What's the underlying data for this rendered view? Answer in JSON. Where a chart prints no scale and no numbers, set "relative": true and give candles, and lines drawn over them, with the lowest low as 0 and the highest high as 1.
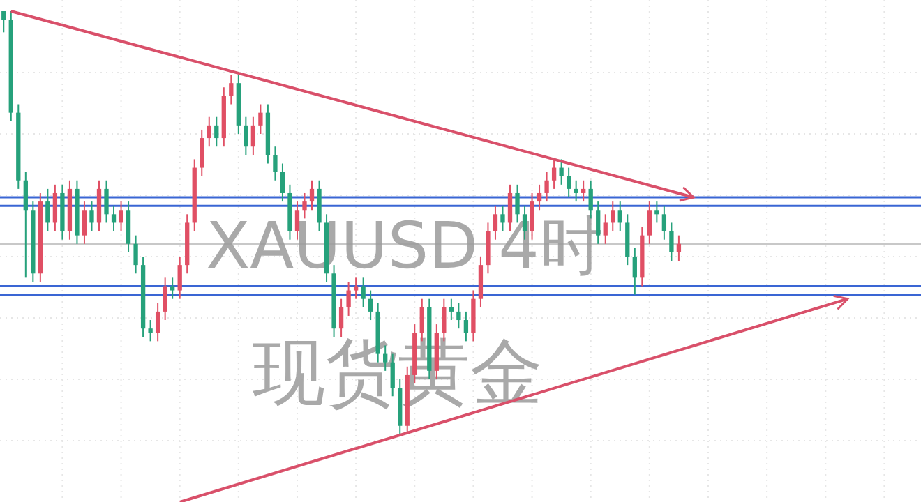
{
  "chart_data": {
    "type": "candlestick",
    "relative": true,
    "grid": true,
    "annotations": [
      "XAUUSD 4时",
      "现货黄金"
    ],
    "categories": [
      null,
      null,
      null,
      null,
      null,
      null,
      null,
      null,
      null,
      null,
      null,
      null,
      null,
      null,
      null,
      null,
      null,
      null,
      null,
      null,
      null,
      null,
      null,
      null,
      null,
      null,
      null,
      null,
      null,
      null,
      null,
      null,
      null,
      null,
      null,
      null,
      null,
      null,
      null,
      null,
      null,
      null,
      null,
      null,
      null,
      null,
      null,
      null,
      null,
      null,
      null,
      null,
      null,
      null,
      null,
      null,
      null,
      null,
      null,
      null,
      null,
      null,
      null,
      null,
      null,
      null,
      null,
      null,
      null,
      null,
      null,
      null,
      null,
      null,
      null,
      null,
      null,
      null,
      null,
      null,
      null,
      null,
      null,
      null,
      null,
      null,
      null,
      null,
      null,
      null,
      null,
      null,
      null,
      null,
      null,
      null,
      null,
      null,
      null,
      null,
      null,
      null,
      null,
      null,
      null,
      null,
      null,
      null,
      null,
      null,
      null,
      null,
      null,
      null,
      null,
      null
    ],
    "ohlc": [
      [
        1.0,
        1.0,
        0.95,
        0.98
      ],
      [
        0.98,
        1.0,
        0.74,
        0.76
      ],
      [
        0.76,
        0.78,
        0.58,
        0.6
      ],
      [
        0.6,
        0.62,
        0.37,
        0.53
      ],
      [
        0.53,
        0.55,
        0.36,
        0.38
      ],
      [
        0.38,
        0.57,
        0.36,
        0.55
      ],
      [
        0.55,
        0.58,
        0.48,
        0.5
      ],
      [
        0.5,
        0.59,
        0.48,
        0.57
      ],
      [
        0.57,
        0.59,
        0.46,
        0.48
      ],
      [
        0.48,
        0.6,
        0.46,
        0.58
      ],
      [
        0.58,
        0.6,
        0.45,
        0.47
      ],
      [
        0.47,
        0.55,
        0.45,
        0.53
      ],
      [
        0.53,
        0.55,
        0.48,
        0.5
      ],
      [
        0.5,
        0.6,
        0.48,
        0.58
      ],
      [
        0.58,
        0.6,
        0.5,
        0.52
      ],
      [
        0.52,
        0.54,
        0.48,
        0.5
      ],
      [
        0.5,
        0.55,
        0.48,
        0.53
      ],
      [
        0.53,
        0.55,
        0.43,
        0.45
      ],
      [
        0.45,
        0.47,
        0.38,
        0.4
      ],
      [
        0.4,
        0.42,
        0.23,
        0.25
      ],
      [
        0.25,
        0.27,
        0.22,
        0.24
      ],
      [
        0.24,
        0.31,
        0.22,
        0.29
      ],
      [
        0.29,
        0.37,
        0.27,
        0.35
      ],
      [
        0.35,
        0.37,
        0.32,
        0.34
      ],
      [
        0.34,
        0.42,
        0.32,
        0.4
      ],
      [
        0.4,
        0.52,
        0.38,
        0.5
      ],
      [
        0.5,
        0.65,
        0.48,
        0.63
      ],
      [
        0.63,
        0.72,
        0.61,
        0.7
      ],
      [
        0.7,
        0.75,
        0.68,
        0.73
      ],
      [
        0.73,
        0.75,
        0.68,
        0.7
      ],
      [
        0.7,
        0.82,
        0.68,
        0.8
      ],
      [
        0.8,
        0.85,
        0.78,
        0.83
      ],
      [
        0.83,
        0.85,
        0.71,
        0.73
      ],
      [
        0.73,
        0.75,
        0.66,
        0.68
      ],
      [
        0.68,
        0.75,
        0.66,
        0.73
      ],
      [
        0.73,
        0.78,
        0.71,
        0.76
      ],
      [
        0.76,
        0.78,
        0.64,
        0.66
      ],
      [
        0.66,
        0.68,
        0.6,
        0.62
      ],
      [
        0.62,
        0.64,
        0.55,
        0.57
      ],
      [
        0.57,
        0.59,
        0.46,
        0.48
      ],
      [
        0.48,
        0.55,
        0.46,
        0.53
      ],
      [
        0.53,
        0.57,
        0.51,
        0.55
      ],
      [
        0.55,
        0.6,
        0.53,
        0.58
      ],
      [
        0.58,
        0.6,
        0.48,
        0.5
      ],
      [
        0.5,
        0.52,
        0.36,
        0.38
      ],
      [
        0.38,
        0.4,
        0.23,
        0.25
      ],
      [
        0.25,
        0.32,
        0.23,
        0.3
      ],
      [
        0.3,
        0.36,
        0.28,
        0.34
      ],
      [
        0.34,
        0.37,
        0.32,
        0.35
      ],
      [
        0.35,
        0.37,
        0.3,
        0.32
      ],
      [
        0.32,
        0.34,
        0.27,
        0.29
      ],
      [
        0.29,
        0.31,
        0.17,
        0.19
      ],
      [
        0.19,
        0.21,
        0.15,
        0.17
      ],
      [
        0.17,
        0.19,
        0.09,
        0.11
      ],
      [
        0.11,
        0.13,
        0.0,
        0.02
      ],
      [
        0.02,
        0.16,
        0.0,
        0.14
      ],
      [
        0.14,
        0.26,
        0.12,
        0.24
      ],
      [
        0.24,
        0.32,
        0.22,
        0.3
      ],
      [
        0.3,
        0.32,
        0.13,
        0.15
      ],
      [
        0.15,
        0.26,
        0.13,
        0.24
      ],
      [
        0.24,
        0.32,
        0.22,
        0.3
      ],
      [
        0.3,
        0.32,
        0.27,
        0.29
      ],
      [
        0.29,
        0.31,
        0.25,
        0.27
      ],
      [
        0.27,
        0.29,
        0.22,
        0.24
      ],
      [
        0.24,
        0.34,
        0.22,
        0.32
      ],
      [
        0.32,
        0.42,
        0.3,
        0.4
      ],
      [
        0.4,
        0.5,
        0.38,
        0.48
      ],
      [
        0.48,
        0.54,
        0.46,
        0.52
      ],
      [
        0.52,
        0.54,
        0.48,
        0.5
      ],
      [
        0.5,
        0.59,
        0.48,
        0.57
      ],
      [
        0.57,
        0.59,
        0.5,
        0.52
      ],
      [
        0.52,
        0.54,
        0.46,
        0.48
      ],
      [
        0.48,
        0.57,
        0.46,
        0.55
      ],
      [
        0.55,
        0.59,
        0.53,
        0.57
      ],
      [
        0.57,
        0.62,
        0.55,
        0.6
      ],
      [
        0.6,
        0.65,
        0.58,
        0.63
      ],
      [
        0.63,
        0.65,
        0.59,
        0.61
      ],
      [
        0.61,
        0.63,
        0.56,
        0.58
      ],
      [
        0.58,
        0.6,
        0.55,
        0.57
      ],
      [
        0.57,
        0.6,
        0.55,
        0.58
      ],
      [
        0.58,
        0.6,
        0.51,
        0.53
      ],
      [
        0.53,
        0.55,
        0.45,
        0.47
      ],
      [
        0.47,
        0.52,
        0.45,
        0.5
      ],
      [
        0.5,
        0.55,
        0.48,
        0.53
      ],
      [
        0.53,
        0.55,
        0.48,
        0.5
      ],
      [
        0.5,
        0.52,
        0.4,
        0.42
      ],
      [
        0.42,
        0.44,
        0.33,
        0.37
      ],
      [
        0.37,
        0.49,
        0.35,
        0.47
      ],
      [
        0.47,
        0.55,
        0.45,
        0.53
      ],
      [
        0.53,
        0.55,
        0.5,
        0.52
      ],
      [
        0.52,
        0.54,
        0.46,
        0.48
      ],
      [
        0.48,
        0.5,
        0.41,
        0.43
      ],
      [
        0.43,
        0.47,
        0.41,
        0.45
      ],
      null,
      null,
      null,
      null,
      null,
      null,
      null,
      null,
      null,
      null,
      null,
      null,
      null,
      null,
      null,
      null,
      null,
      null,
      null,
      null,
      null,
      null,
      null
    ],
    "colors": [
      "#26a17b",
      "#26a17b",
      "#26a17b",
      "#26a17b",
      "#26a17b",
      "#e04f64",
      "#26a17b",
      "#e04f64",
      "#26a17b",
      "#e04f64",
      "#26a17b",
      "#e04f64",
      "#26a17b",
      "#e04f64",
      "#26a17b",
      "#26a17b",
      "#e04f64",
      "#26a17b",
      "#26a17b",
      "#26a17b",
      "#26a17b",
      "#e04f64",
      "#e04f64",
      "#26a17b",
      "#e04f64",
      "#e04f64",
      "#e04f64",
      "#e04f64",
      "#e04f64",
      "#26a17b",
      "#e04f64",
      "#e04f64",
      "#26a17b",
      "#26a17b",
      "#e04f64",
      "#e04f64",
      "#26a17b",
      "#26a17b",
      "#26a17b",
      "#26a17b",
      "#e04f64",
      "#e04f64",
      "#e04f64",
      "#26a17b",
      "#26a17b",
      "#26a17b",
      "#e04f64",
      "#e04f64",
      "#e04f64",
      "#26a17b",
      "#26a17b",
      "#26a17b",
      "#26a17b",
      "#26a17b",
      "#26a17b",
      "#e04f64",
      "#e04f64",
      "#e04f64",
      "#26a17b",
      "#e04f64",
      "#e04f64",
      "#26a17b",
      "#26a17b",
      "#26a17b",
      "#e04f64",
      "#e04f64",
      "#e04f64",
      "#e04f64",
      "#26a17b",
      "#e04f64",
      "#26a17b",
      "#26a17b",
      "#e04f64",
      "#e04f64",
      "#e04f64",
      "#e04f64",
      "#26a17b",
      "#26a17b",
      "#26a17b",
      "#e04f64",
      "#26a17b",
      "#26a17b",
      "#e04f64",
      "#e04f64",
      "#26a17b",
      "#26a17b",
      "#26a17b",
      "#e04f64",
      "#e04f64",
      "#26a17b",
      "#26a17b",
      "#26a17b",
      "#e04f64",
      null,
      null,
      null,
      null,
      null,
      null,
      null,
      null,
      null,
      null,
      null,
      null,
      null,
      null,
      null,
      null,
      null,
      null,
      null,
      null,
      null,
      null,
      null
    ],
    "series": [
      {
        "type": "line",
        "color": "#d9506a",
        "values": [
          null,
          1.0,
          null,
          null,
          null,
          null,
          null,
          null,
          null,
          null,
          null,
          null,
          null,
          null,
          null,
          null,
          null,
          null,
          null,
          null,
          null,
          null,
          null,
          null,
          null,
          null,
          null,
          null,
          null,
          null,
          null,
          null,
          null,
          null,
          null,
          null,
          null,
          null,
          null,
          null,
          null,
          null,
          null,
          null,
          null,
          null,
          null,
          null,
          null,
          null,
          null,
          null,
          null,
          null,
          null,
          null,
          null,
          null,
          null,
          null,
          null,
          null,
          null,
          null,
          null,
          null,
          null,
          null,
          null,
          null,
          null,
          null,
          null,
          null,
          null,
          null,
          null,
          null,
          null,
          null,
          null,
          null,
          null,
          null,
          null,
          null,
          null,
          null,
          null,
          null,
          null,
          null,
          null,
          null,
          0.56,
          null,
          null,
          null,
          null,
          null,
          null,
          null,
          null,
          null,
          null,
          null,
          null,
          null,
          null,
          null,
          null,
          null,
          null,
          null,
          null,
          null
        ]
      },
      {
        "type": "line",
        "color": "#d9506a",
        "values": [
          null,
          null,
          null,
          null,
          null,
          null,
          null,
          null,
          null,
          null,
          null,
          null,
          null,
          null,
          null,
          null,
          null,
          null,
          null,
          null,
          null,
          null,
          null,
          null,
          -0.16,
          null,
          null,
          null,
          null,
          null,
          null,
          null,
          null,
          null,
          null,
          null,
          null,
          null,
          null,
          null,
          null,
          null,
          null,
          null,
          null,
          null,
          null,
          null,
          null,
          null,
          null,
          null,
          null,
          null,
          null,
          null,
          null,
          null,
          null,
          null,
          null,
          null,
          null,
          null,
          null,
          null,
          null,
          null,
          null,
          null,
          null,
          null,
          null,
          null,
          null,
          null,
          null,
          null,
          null,
          null,
          null,
          null,
          null,
          null,
          null,
          null,
          null,
          null,
          null,
          null,
          null,
          null,
          null,
          null,
          null,
          null,
          null,
          null,
          null,
          null,
          null,
          null,
          null,
          null,
          null,
          null,
          null,
          null,
          null,
          null,
          null,
          null,
          null,
          null,
          null,
          0.32
        ]
      }
    ],
    "ref_lines": [
      {
        "axis": "y",
        "value": 0.56,
        "color": "#3a66d4"
      },
      {
        "axis": "y",
        "value": 0.54,
        "color": "#3a66d4"
      },
      {
        "axis": "y",
        "value": 0.35,
        "color": "#3a66d4"
      },
      {
        "axis": "y",
        "value": 0.33,
        "color": "#3a66d4"
      },
      {
        "axis": "y",
        "value": 0.45,
        "color": "#c8c8c8"
      }
    ]
  }
}
